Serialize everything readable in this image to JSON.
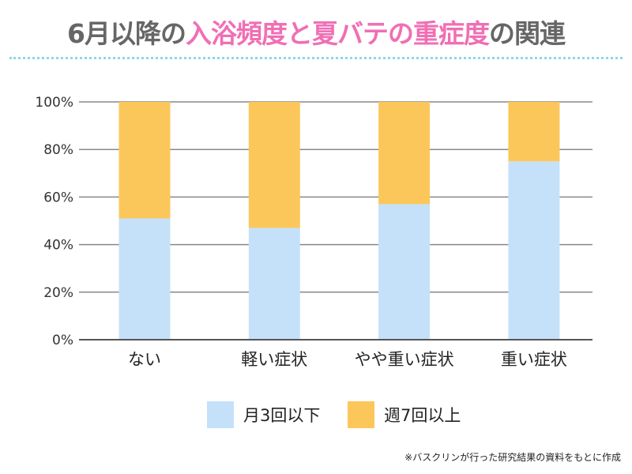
{
  "title": {
    "part1": "6月以降の",
    "part2": "入浴頻度と夏バテの重症度",
    "part3": "の関連"
  },
  "chart_data": {
    "type": "bar",
    "stacked": true,
    "categories": [
      "ない",
      "軽い症状",
      "やや重い症状",
      "重い症状"
    ],
    "series": [
      {
        "name": "月3回以下",
        "values": [
          51,
          47,
          57,
          75
        ],
        "color": "#c5e1fa"
      },
      {
        "name": "週7回以上",
        "values": [
          49,
          53,
          43,
          25
        ],
        "color": "#fcc75a"
      }
    ],
    "ylim": [
      0,
      100
    ],
    "yticks": [
      "0%",
      "20%",
      "40%",
      "60%",
      "80%",
      "100%"
    ],
    "grid": true,
    "legend_position": "bottom"
  },
  "footnote": "※バスクリンが行った研究結果の資料をもとに作成"
}
